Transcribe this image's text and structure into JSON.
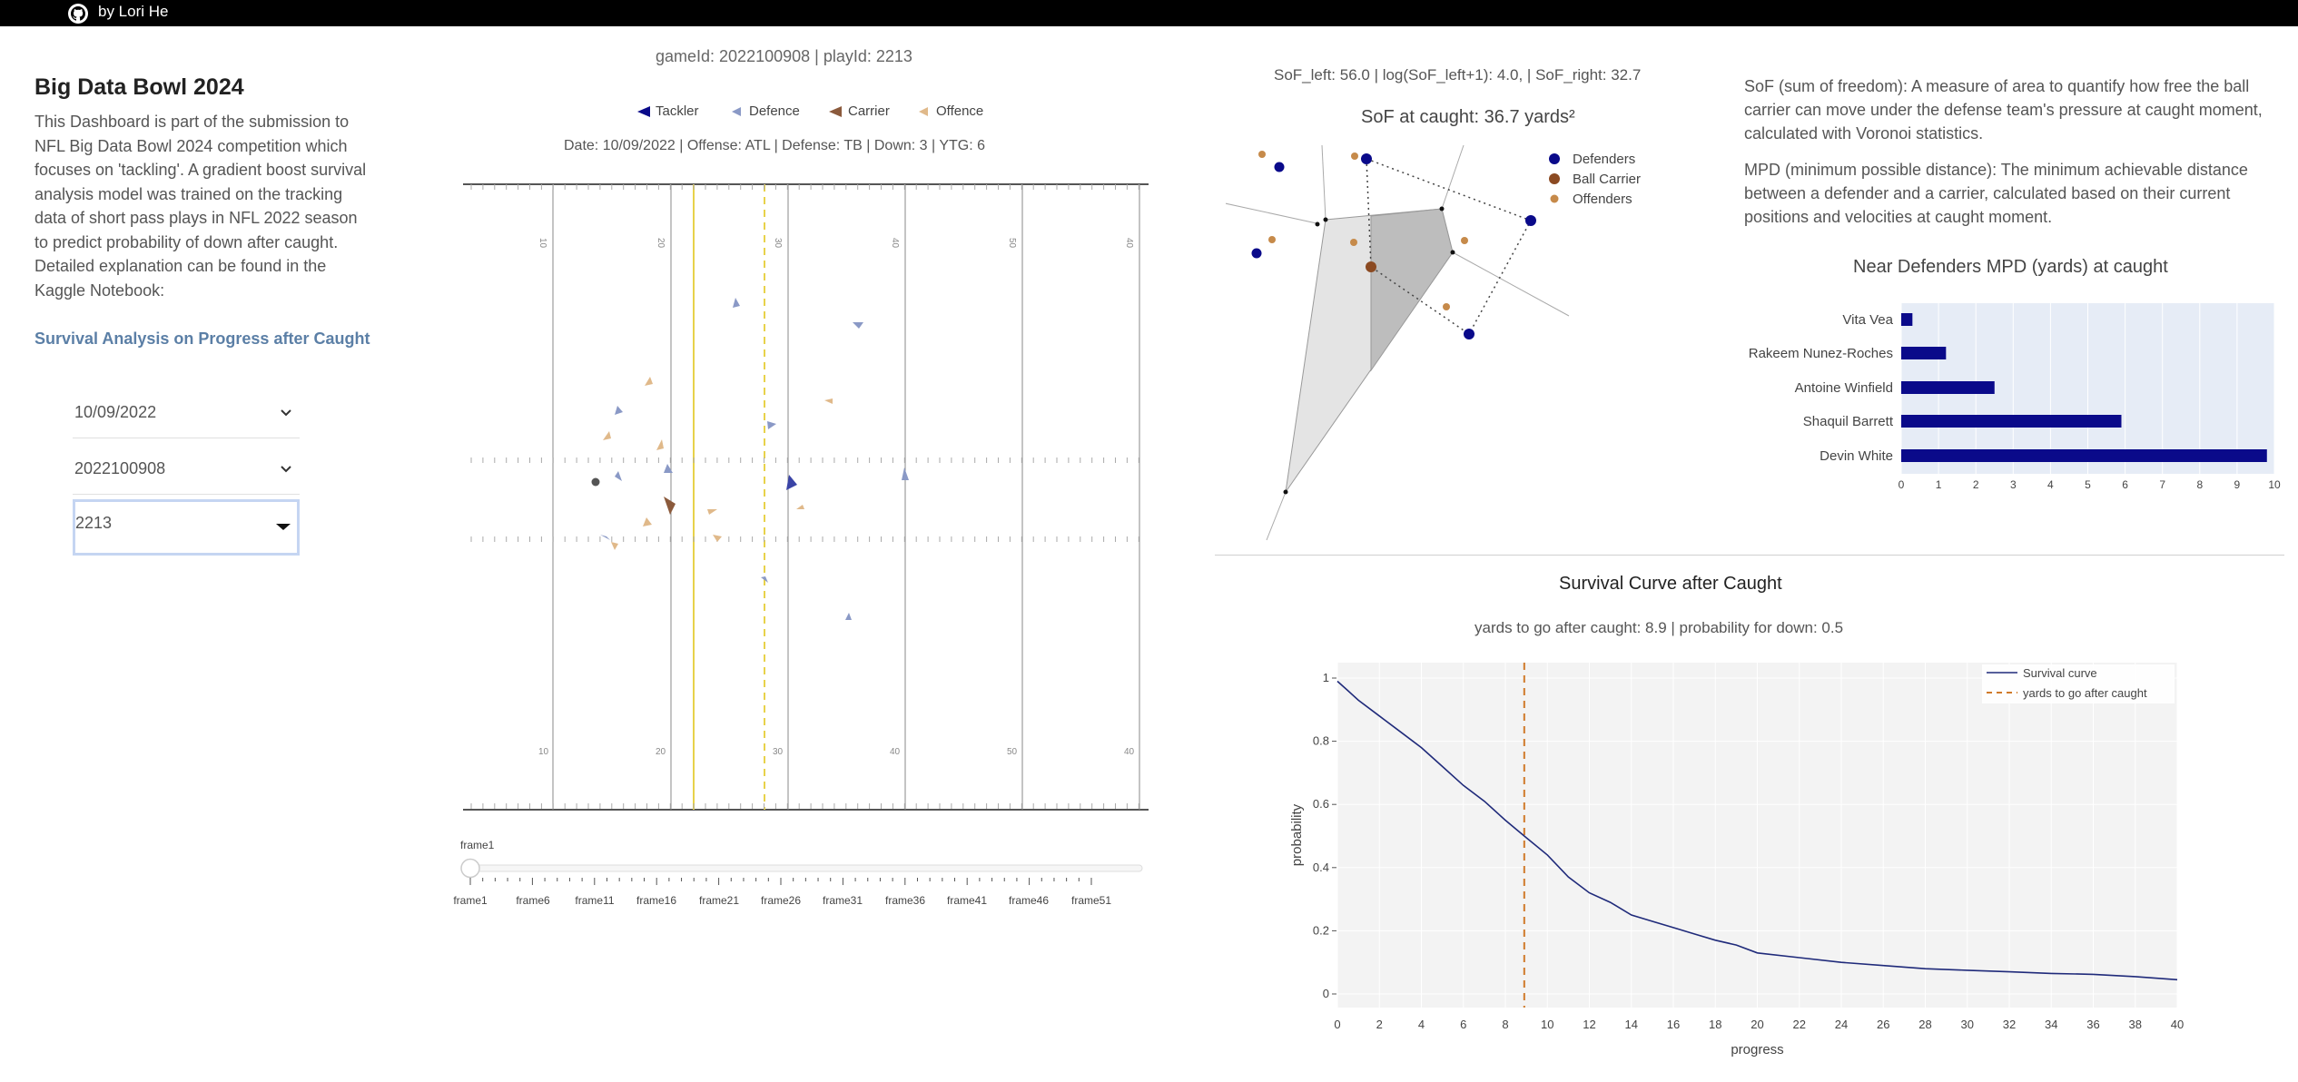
{
  "header": {
    "author": "by Lori He",
    "github_icon": "github-icon"
  },
  "sidebar": {
    "title": "Big Data Bowl 2024",
    "description": "This Dashboard is part of the submission to NFL Big Data Bowl 2024 competition which focuses on 'tackling'. A gradient boost survival analysis model was trained on the tracking data of short pass plays in NFL 2022 season to predict probability of down after caught. Detailed explanation can be found in the Kaggle Notebook:",
    "notebook_link": "Survival Analysis on Progress after Caught",
    "dropdowns": [
      {
        "value": "10/09/2022"
      },
      {
        "value": "2022100908"
      },
      {
        "value": "2213"
      }
    ]
  },
  "field": {
    "ids_line": "gameId: 2022100908 | playId: 2213",
    "legend": [
      "Tackler",
      "Defence",
      "Carrier",
      "Offence"
    ],
    "info_line": "Date: 10/09/2022 | Offense: ATL | Defense: TB | Down: 3 | YTG: 6",
    "yard_numbers_top": [
      "10",
      "20",
      "30",
      "40",
      "50",
      "40"
    ],
    "yard_numbers_bottom": [
      "10",
      "20",
      "30",
      "40",
      "50",
      "40"
    ],
    "slider_label": "frame1",
    "slider_ticks": [
      "frame1",
      "frame6",
      "frame11",
      "frame16",
      "frame21",
      "frame26",
      "frame31",
      "frame36",
      "frame41",
      "frame46",
      "frame51"
    ]
  },
  "sof": {
    "stats_line": "SoF_left: 56.0 | log(SoF_left+1): 4.0, | SoF_right: 32.7",
    "title": "SoF at caught: 36.7 yards²",
    "legend": [
      "Defenders",
      "Ball Carrier",
      "Offenders"
    ]
  },
  "definitions": {
    "sof": "SoF (sum of freedom): A measure of area to quantify how free the ball carrier can move under the defense team's pressure at caught moment, calculated with Voronoi statistics.",
    "mpd": "MPD (minimum possible distance): The minimum achievable distance between a defender and a carrier, calculated based on their current positions and velocities at caught moment."
  },
  "mpd_chart": {
    "title": "Near Defenders MPD (yards) at caught",
    "chart_data": {
      "type": "bar",
      "orientation": "horizontal",
      "title": "Near Defenders MPD (yards) at caught",
      "categories": [
        "Vita Vea",
        "Rakeem Nunez-Roches",
        "Antoine Winfield",
        "Shaquil Barrett",
        "Devin White"
      ],
      "values": [
        0.3,
        1.2,
        2.5,
        5.9,
        9.8
      ],
      "xlim": [
        0,
        10
      ],
      "xticks": [
        "0",
        "1",
        "2",
        "3",
        "4",
        "5",
        "6",
        "7",
        "8",
        "9",
        "10"
      ],
      "color": "#0a0a8a"
    }
  },
  "survival": {
    "title": "Survival Curve after Caught",
    "subtitle": "yards to go after caught: 8.9 | probability for down: 0.5",
    "chart_data": {
      "type": "line",
      "xlabel": "progress",
      "ylabel": "probability",
      "xlim": [
        0,
        40
      ],
      "ylim": [
        0,
        1
      ],
      "xticks": [
        "0",
        "2",
        "4",
        "6",
        "8",
        "10",
        "12",
        "14",
        "16",
        "18",
        "20",
        "22",
        "24",
        "26",
        "28",
        "30",
        "32",
        "34",
        "36",
        "38",
        "40"
      ],
      "yticks": [
        "0",
        "0.2",
        "0.4",
        "0.6",
        "0.8",
        "1"
      ],
      "series": [
        {
          "name": "Survival curve",
          "color": "#1f2a7a",
          "x": [
            0,
            0.5,
            1,
            2,
            3,
            4,
            5,
            6,
            7,
            8,
            8.9,
            10,
            11,
            12,
            13,
            14,
            15,
            16,
            17,
            18,
            19,
            20,
            22,
            24,
            26,
            28,
            30,
            32,
            34,
            36,
            38,
            40
          ],
          "y": [
            0.99,
            0.96,
            0.93,
            0.88,
            0.83,
            0.78,
            0.72,
            0.66,
            0.61,
            0.55,
            0.5,
            0.44,
            0.37,
            0.32,
            0.29,
            0.25,
            0.23,
            0.21,
            0.19,
            0.17,
            0.155,
            0.13,
            0.115,
            0.1,
            0.09,
            0.08,
            0.075,
            0.07,
            0.065,
            0.062,
            0.055,
            0.045
          ]
        }
      ],
      "vline": {
        "name": "yards to go after caught",
        "x": 8.9,
        "color": "#d07a2a"
      }
    }
  },
  "colors": {
    "tackler": "#0a0a8a",
    "defence": "#8a99c6",
    "carrier": "#8b5a3c",
    "offence": "#e0b98a",
    "link": "#5b7fa6"
  }
}
